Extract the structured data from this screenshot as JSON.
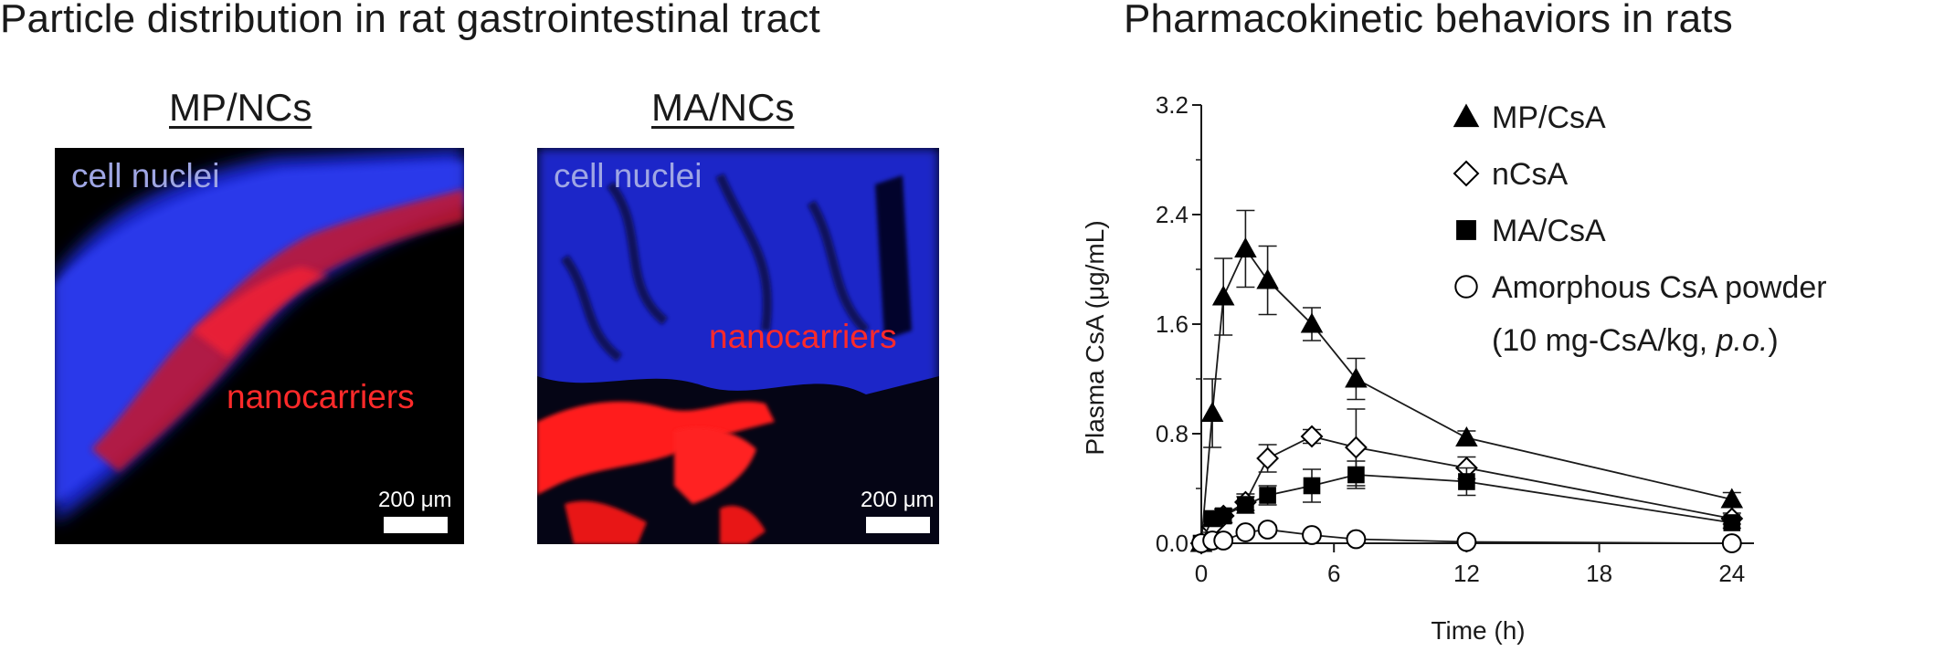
{
  "left": {
    "heading": "Particle distribution in rat gastrointestinal tract",
    "panels": [
      {
        "title": "MP/NCs",
        "nuclei_label": "cell nuclei",
        "carrier_label": "nanocarriers",
        "scale_label": "200 μm"
      },
      {
        "title": "MA/NCs",
        "nuclei_label": "cell nuclei",
        "carrier_label": "nanocarriers",
        "scale_label": "200 μm"
      }
    ]
  },
  "chart_data": {
    "type": "scatter",
    "title": "Pharmacokinetic behaviors in rats",
    "xlabel": "Time (h)",
    "ylabel": "Plasma CsA (μg/mL)",
    "xlim": [
      0,
      25
    ],
    "ylim": [
      0,
      3.2
    ],
    "xticks": [
      0,
      6,
      12,
      18,
      24
    ],
    "yticks": [
      0.0,
      0.8,
      1.6,
      2.4,
      3.2
    ],
    "ytick_labels": [
      "0.0",
      "0.8",
      "1.6",
      "2.4",
      "3.2"
    ],
    "grid": false,
    "legend_placement": "top-right",
    "legend_note_prefix": "(10 mg-CsA/kg, ",
    "legend_note_italic": "p.o.",
    "legend_note_suffix": ")",
    "series": [
      {
        "name": "MP/CsA",
        "marker": "triangle-filled",
        "x": [
          0,
          0.5,
          1,
          2,
          3,
          5,
          7,
          12,
          24
        ],
        "y": [
          0.0,
          0.95,
          1.8,
          2.15,
          1.92,
          1.6,
          1.2,
          0.77,
          0.32
        ],
        "err": [
          0,
          0.25,
          0.28,
          0.28,
          0.25,
          0.12,
          0.15,
          0.05,
          0.05
        ]
      },
      {
        "name": "nCsA",
        "marker": "diamond-open",
        "x": [
          0,
          0.5,
          1,
          2,
          3,
          5,
          7,
          12,
          24
        ],
        "y": [
          0.0,
          0.12,
          0.2,
          0.3,
          0.62,
          0.78,
          0.7,
          0.55,
          0.18
        ],
        "err": [
          0,
          0.04,
          0.05,
          0.06,
          0.1,
          0.05,
          0.28,
          0.08,
          0.04
        ]
      },
      {
        "name": "MA/CsA",
        "marker": "square-filled",
        "x": [
          0,
          0.5,
          1,
          2,
          3,
          5,
          7,
          12,
          24
        ],
        "y": [
          0.0,
          0.18,
          0.2,
          0.28,
          0.35,
          0.42,
          0.5,
          0.45,
          0.15
        ],
        "err": [
          0,
          0.05,
          0.05,
          0.06,
          0.07,
          0.12,
          0.1,
          0.1,
          0.04
        ]
      },
      {
        "name": "Amorphous CsA powder",
        "marker": "circle-open",
        "x": [
          0,
          0.5,
          1,
          2,
          3,
          5,
          7,
          12,
          24
        ],
        "y": [
          0.0,
          0.02,
          0.02,
          0.08,
          0.1,
          0.06,
          0.03,
          0.01,
          0.0
        ],
        "err": [
          0,
          0.01,
          0.01,
          0.02,
          0.03,
          0.02,
          0.02,
          0.01,
          0.0
        ]
      }
    ]
  }
}
